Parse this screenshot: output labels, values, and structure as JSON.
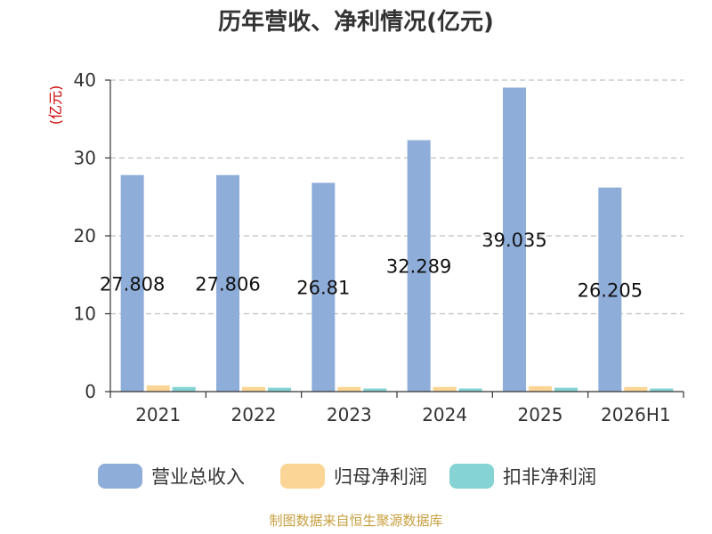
{
  "chart_data": {
    "type": "bar",
    "title": "历年营收、净利情况(亿元)",
    "ylabel": "(亿元)",
    "xlabel": "",
    "categories": [
      "2021",
      "2022",
      "2023",
      "2024",
      "2025",
      "2026H1"
    ],
    "ylim": [
      0,
      40
    ],
    "yticks": [
      0,
      10,
      20,
      30,
      40
    ],
    "grid": true,
    "legend_position": "bottom",
    "series": [
      {
        "name": "营业总收入",
        "color": "#8eadd9",
        "values": [
          27.808,
          27.806,
          26.81,
          32.289,
          39.035,
          26.205
        ],
        "labels": [
          "27.808",
          "27.806",
          "26.81",
          "32.289",
          "39.035",
          "26.205"
        ]
      },
      {
        "name": "归母净利润",
        "color": "#fbd595",
        "values": [
          0.8,
          0.6,
          0.6,
          0.6,
          0.7,
          0.6
        ]
      },
      {
        "name": "扣非净利润",
        "color": "#86d3d3",
        "values": [
          0.6,
          0.5,
          0.4,
          0.4,
          0.5,
          0.4
        ]
      }
    ]
  },
  "source": "制图数据来自恒生聚源数据库"
}
